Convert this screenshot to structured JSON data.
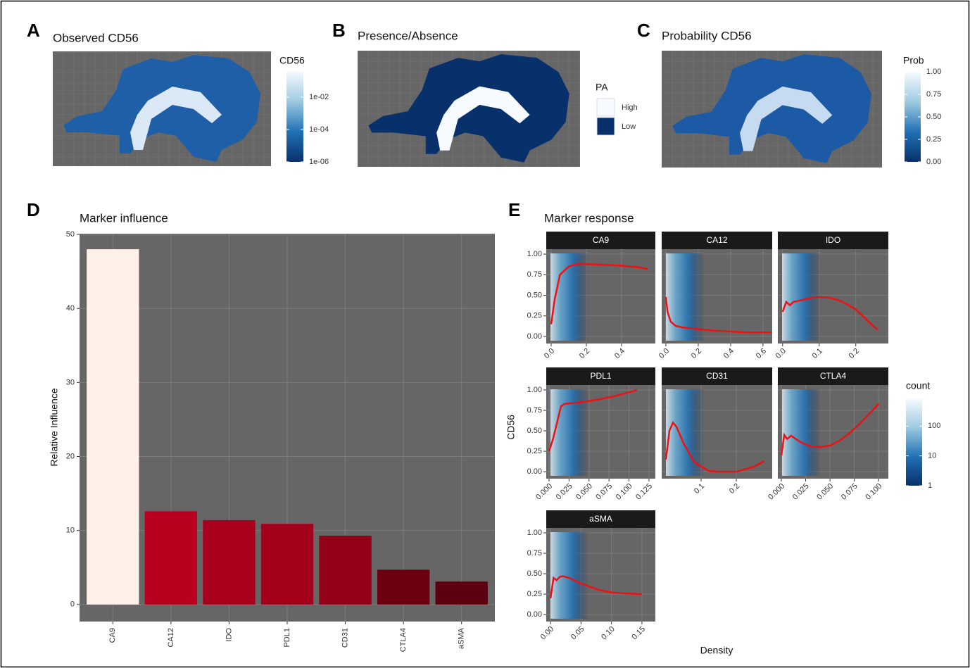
{
  "chart_data": [
    {
      "type": "map",
      "label": "A",
      "title": "Observed CD56",
      "legend": {
        "title": "CD56",
        "log": true,
        "lim": [
          1e-06,
          0.4
        ],
        "colors": [
          "#08306b",
          "#2171b5",
          "#9ecae1",
          "#f7fbff"
        ],
        "ticks": [
          {
            "value": 0.01,
            "label": "1e-02"
          },
          {
            "value": 0.0001,
            "label": "1e-04"
          },
          {
            "value": 1e-06,
            "label": "1e-06"
          }
        ]
      }
    },
    {
      "type": "map",
      "label": "B",
      "title": "Presence/Absence",
      "legend": {
        "title": "PA",
        "items": [
          {
            "name": "High",
            "color": "#f7fbff"
          },
          {
            "name": "Low",
            "color": "#08306b"
          }
        ]
      }
    },
    {
      "type": "map",
      "label": "C",
      "title": "Probability CD56",
      "legend": {
        "title": "Prob",
        "lim": [
          0,
          1
        ],
        "colors": [
          "#08306b",
          "#2171b5",
          "#9ecae1",
          "#f7fbff"
        ],
        "ticks": [
          {
            "value": 1,
            "label": "1.00"
          },
          {
            "value": 0.75,
            "label": "0.75"
          },
          {
            "value": 0.5,
            "label": "0.50"
          },
          {
            "value": 0.25,
            "label": "0.25"
          },
          {
            "value": 0,
            "label": "0.00"
          }
        ]
      }
    },
    {
      "type": "bar",
      "label": "D",
      "title": "Marker influence",
      "ylabel": "Relative Influence",
      "categories": [
        "CA9",
        "CA12",
        "IDO",
        "PDL1",
        "CD31",
        "CTLA4",
        "aSMA"
      ],
      "values": [
        48,
        12.6,
        11.4,
        10.9,
        9.3,
        4.7,
        3.1
      ],
      "colors": [
        "#fff0e8",
        "#b8001f",
        "#a9001d",
        "#a3001c",
        "#950019",
        "#6c0011",
        "#5c000f"
      ],
      "ylim": [
        -2.3,
        50.1
      ],
      "yticks": [
        0,
        10,
        20,
        30,
        40,
        50
      ],
      "grid": true
    },
    {
      "type": "facet-line",
      "label": "E",
      "title": "Marker response",
      "ylabel": "CD56",
      "xlabel": "Density",
      "color": "#ee1111",
      "ylim": [
        -0.085,
        1.06
      ],
      "yticks": [
        {
          "value": 0,
          "label": "0.00"
        },
        {
          "value": 0.25,
          "label": "0.25"
        },
        {
          "value": 0.5,
          "label": "0.50"
        },
        {
          "value": 0.75,
          "label": "0.75"
        },
        {
          "value": 1,
          "label": "1.00"
        }
      ],
      "legend": {
        "title": "count",
        "log": true,
        "lim": [
          1,
          850
        ],
        "colors": [
          "#08306b",
          "#2171b5",
          "#9ecae1",
          "#f7fbff"
        ],
        "ticks": [
          100,
          10,
          1
        ]
      },
      "facets": [
        {
          "name": "CA9",
          "xlim": [
            -0.028,
            0.592
          ],
          "xticks": [
            {
              "value": 0,
              "label": "0.0"
            },
            0.2,
            0.4
          ],
          "x": [
            0,
            0.02,
            0.05,
            0.1,
            0.15,
            0.2,
            0.3,
            0.4,
            0.5,
            0.55
          ],
          "values": [
            0.15,
            0.45,
            0.75,
            0.85,
            0.88,
            0.88,
            0.87,
            0.86,
            0.84,
            0.82
          ]
        },
        {
          "name": "CA12",
          "xlim": [
            -0.026,
            0.657
          ],
          "xticks": [
            {
              "value": 0,
              "label": "0.0"
            },
            0.2,
            0.4,
            0.6
          ],
          "x": [
            0,
            0.01,
            0.03,
            0.06,
            0.1,
            0.2,
            0.3,
            0.4,
            0.5,
            0.6,
            0.65
          ],
          "values": [
            0.48,
            0.3,
            0.18,
            0.13,
            0.11,
            0.09,
            0.07,
            0.06,
            0.05,
            0.05,
            0.05
          ]
        },
        {
          "name": "IDO",
          "xlim": [
            -0.013,
            0.289
          ],
          "xticks": [
            {
              "value": 0,
              "label": "0.0"
            },
            0.1,
            0.2
          ],
          "x": [
            0,
            0.01,
            0.02,
            0.03,
            0.05,
            0.08,
            0.1,
            0.13,
            0.16,
            0.2,
            0.23,
            0.26
          ],
          "values": [
            0.3,
            0.42,
            0.38,
            0.42,
            0.44,
            0.47,
            0.48,
            0.47,
            0.43,
            0.33,
            0.2,
            0.08
          ]
        },
        {
          "name": "PDL1",
          "xlim": [
            -0.0035,
            0.133
          ],
          "xticks": [
            {
              "value": 0,
              "label": "0.000"
            },
            0.025,
            {
              "value": 0.05,
              "label": "0.050"
            },
            0.075,
            {
              "value": 0.1,
              "label": "0.100"
            },
            0.125
          ],
          "x": [
            0,
            0.005,
            0.01,
            0.015,
            0.02,
            0.04,
            0.06,
            0.08,
            0.1,
            0.11
          ],
          "values": [
            0.25,
            0.4,
            0.6,
            0.8,
            0.83,
            0.85,
            0.88,
            0.92,
            0.97,
            1.0
          ]
        },
        {
          "name": "CD31",
          "xlim": [
            -0.012,
            0.302
          ],
          "xticks": [
            0.1,
            0.2
          ],
          "x": [
            0,
            0.01,
            0.02,
            0.03,
            0.05,
            0.08,
            0.12,
            0.15,
            0.2,
            0.25,
            0.28
          ],
          "values": [
            0.15,
            0.5,
            0.6,
            0.55,
            0.35,
            0.12,
            0.01,
            0,
            0,
            0.06,
            0.13
          ]
        },
        {
          "name": "CTLA4",
          "xlim": [
            -0.0036,
            0.11
          ],
          "xticks": [
            {
              "value": 0,
              "label": "0.000"
            },
            0.025,
            {
              "value": 0.05,
              "label": "0.050"
            },
            0.075,
            {
              "value": 0.1,
              "label": "0.100"
            }
          ],
          "x": [
            0,
            0.003,
            0.006,
            0.01,
            0.015,
            0.02,
            0.03,
            0.04,
            0.05,
            0.06,
            0.07,
            0.08,
            0.09,
            0.1
          ],
          "values": [
            0.2,
            0.45,
            0.4,
            0.44,
            0.4,
            0.36,
            0.31,
            0.3,
            0.32,
            0.38,
            0.47,
            0.58,
            0.7,
            0.83
          ]
        },
        {
          "name": "aSMA",
          "xlim": [
            -0.007,
            0.172
          ],
          "xticks": [
            {
              "value": 0,
              "label": "0.00"
            },
            0.05,
            {
              "value": 0.1,
              "label": "0.10"
            },
            0.15
          ],
          "x": [
            0,
            0.005,
            0.01,
            0.015,
            0.02,
            0.03,
            0.05,
            0.08,
            0.1,
            0.12,
            0.15
          ],
          "values": [
            0.2,
            0.45,
            0.42,
            0.46,
            0.47,
            0.45,
            0.38,
            0.3,
            0.27,
            0.26,
            0.25
          ]
        }
      ]
    }
  ]
}
